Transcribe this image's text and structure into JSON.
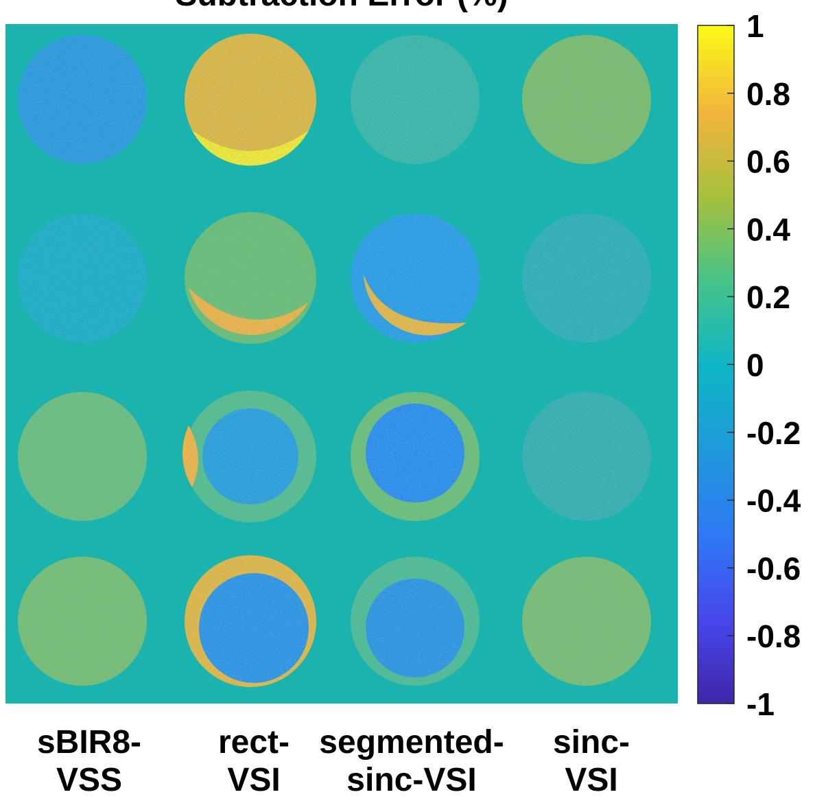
{
  "chart_data": {
    "type": "heatmap",
    "title": "Subtraction Error (%)",
    "column_labels": [
      [
        "sBIR8-",
        "VSS"
      ],
      [
        "rect-",
        "VSI"
      ],
      [
        "segmented-",
        "sinc-VSI"
      ],
      [
        "sinc-",
        "VSI"
      ]
    ],
    "colormap": "parula",
    "clim": [
      -1,
      1
    ],
    "colorbar_ticks": [
      1,
      0.8,
      0.6,
      0.4,
      0.2,
      0,
      -0.2,
      -0.4,
      -0.6,
      -0.8,
      -1
    ]
  }
}
